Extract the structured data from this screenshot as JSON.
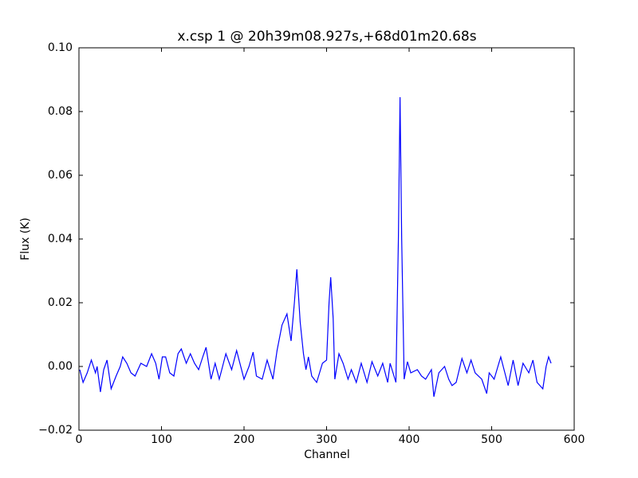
{
  "chart_data": {
    "type": "line",
    "title": "x.csp 1 @ 20h39m08.927s,+68d01m20.68s",
    "xlabel": "Channel",
    "ylabel": "Flux (K)",
    "xlim": [
      0,
      600
    ],
    "xticks": [
      0,
      100,
      200,
      300,
      400,
      500,
      600
    ],
    "ylim": [
      -0.02,
      0.1
    ],
    "yticks": [
      {
        "value": -0.02,
        "label": "−0.02"
      },
      {
        "value": 0,
        "label": "0.00"
      },
      0.02,
      0.04,
      0.06,
      0.08,
      {
        "value": 0.1,
        "label": "0.10"
      }
    ],
    "grid": false,
    "series": [
      {
        "color": "#0000ff",
        "x": [
          1,
          5,
          10,
          15,
          20,
          22,
          26,
          30,
          34,
          39,
          45,
          50,
          53,
          58,
          63,
          68,
          75,
          82,
          88,
          93,
          97,
          101,
          105,
          110,
          115,
          120,
          124,
          130,
          135,
          140,
          145,
          150,
          154,
          160,
          165,
          170,
          178,
          185,
          191,
          200,
          206,
          211,
          215,
          222,
          228,
          235,
          240,
          246,
          252,
          257,
          261,
          264,
          268,
          272,
          275,
          278,
          282,
          288,
          295,
          300,
          303,
          305,
          308,
          310,
          315,
          320,
          326,
          330,
          336,
          342,
          349,
          355,
          362,
          368,
          374,
          377,
          384,
          387,
          389,
          391,
          394,
          398,
          402,
          410,
          415,
          420,
          427,
          430,
          436,
          443,
          448,
          452,
          457,
          464,
          470,
          475,
          480,
          488,
          494,
          497,
          503,
          511,
          515,
          520,
          526,
          532,
          538,
          545,
          550,
          555,
          562,
          566,
          569,
          572
        ],
        "values": [
          -0.001,
          -0.005,
          -0.002,
          0.002,
          -0.002,
          0.0,
          -0.008,
          -0.001,
          0.002,
          -0.007,
          -0.003,
          0.0,
          0.003,
          0.001,
          -0.002,
          -0.003,
          0.001,
          0.0,
          0.004,
          0.001,
          -0.004,
          0.003,
          0.003,
          -0.002,
          -0.003,
          0.004,
          0.0055,
          0.001,
          0.004,
          0.001,
          -0.001,
          0.003,
          0.006,
          -0.004,
          0.001,
          -0.004,
          0.004,
          -0.001,
          0.005,
          -0.004,
          0.0,
          0.0045,
          -0.003,
          -0.004,
          0.002,
          -0.004,
          0.005,
          0.013,
          0.0165,
          0.008,
          0.02,
          0.0305,
          0.014,
          0.004,
          -0.001,
          0.003,
          -0.003,
          -0.005,
          0.001,
          0.002,
          0.02,
          0.028,
          0.015,
          -0.004,
          0.004,
          0.001,
          -0.004,
          -0.001,
          -0.005,
          0.001,
          -0.005,
          0.0015,
          -0.003,
          0.001,
          -0.005,
          0.001,
          -0.005,
          0.04,
          0.0845,
          0.04,
          -0.004,
          0.0015,
          -0.002,
          -0.001,
          -0.003,
          -0.004,
          -0.001,
          -0.0095,
          -0.002,
          0.0,
          -0.004,
          -0.006,
          -0.005,
          0.0025,
          -0.002,
          0.002,
          -0.002,
          -0.004,
          -0.0085,
          -0.002,
          -0.004,
          0.003,
          -0.001,
          -0.006,
          0.002,
          -0.006,
          0.001,
          -0.002,
          0.002,
          -0.005,
          -0.007,
          0.0,
          0.003,
          0.001
        ]
      }
    ]
  }
}
